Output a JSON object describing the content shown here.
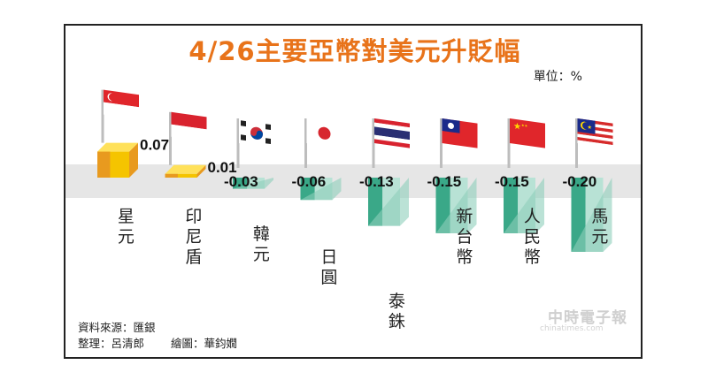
{
  "title": "4/26主要亞幣對美元升貶幅",
  "unit_label": "單位：%",
  "source": {
    "data_source": "資料來源：匯銀",
    "compiler": "整理：呂清郎",
    "illustrator": "繪圖：華鈞嫺"
  },
  "watermark": {
    "brand": "中時電子報",
    "url": "chinatimes.com"
  },
  "colors": {
    "positive_front": "#f5c400",
    "positive_side": "#e89a1f",
    "negative_front": "#b8e2d5",
    "negative_side": "#3aa888",
    "baseline_band": "#e6e6e6"
  },
  "chart_data": {
    "type": "bar",
    "title": "4/26主要亞幣對美元升貶幅",
    "unit": "%",
    "categories": [
      "星元",
      "印尼盾",
      "韓元",
      "日圓",
      "泰銖",
      "新台幣",
      "人民幣",
      "馬元"
    ],
    "value_labels": [
      "0.07",
      "0.01",
      "-0.03",
      "-0.06",
      "-0.13",
      "-0.15",
      "-0.15",
      "-0.20"
    ],
    "values": [
      0.07,
      0.01,
      -0.03,
      -0.06,
      -0.13,
      -0.15,
      -0.15,
      -0.2
    ],
    "flags": [
      "singapore-flag",
      "indonesia-flag",
      "south-korea-flag",
      "japan-flag",
      "thailand-flag",
      "taiwan-flag",
      "china-flag",
      "malaysia-flag"
    ]
  }
}
